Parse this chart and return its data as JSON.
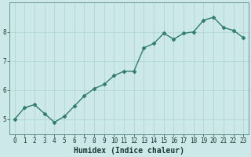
{
  "x": [
    0,
    1,
    2,
    3,
    4,
    5,
    6,
    7,
    8,
    9,
    10,
    11,
    12,
    13,
    14,
    15,
    16,
    17,
    18,
    19,
    20,
    21,
    22,
    23
  ],
  "y": [
    5.0,
    5.4,
    5.5,
    5.2,
    4.9,
    5.1,
    5.45,
    5.8,
    6.05,
    6.2,
    6.5,
    6.65,
    6.65,
    7.45,
    7.6,
    7.95,
    7.75,
    7.95,
    8.0,
    8.4,
    8.5,
    8.15,
    8.05,
    7.8
  ],
  "line_color": "#2e7d6e",
  "marker": "D",
  "markersize": 2.5,
  "linewidth": 1.0,
  "xlabel": "Humidex (Indice chaleur)",
  "xlim": [
    -0.5,
    23.5
  ],
  "ylim": [
    4.5,
    9.0
  ],
  "yticks": [
    5,
    6,
    7,
    8
  ],
  "xticks": [
    0,
    1,
    2,
    3,
    4,
    5,
    6,
    7,
    8,
    9,
    10,
    11,
    12,
    13,
    14,
    15,
    16,
    17,
    18,
    19,
    20,
    21,
    22,
    23
  ],
  "bg_color": "#cde8e8",
  "grid_color": "#b0d4d4",
  "spine_color": "#5a8a80",
  "tick_color": "#2e5f5a",
  "label_color": "#1a3a36",
  "tick_labelsize": 5.5,
  "xlabel_fontsize": 7.0
}
